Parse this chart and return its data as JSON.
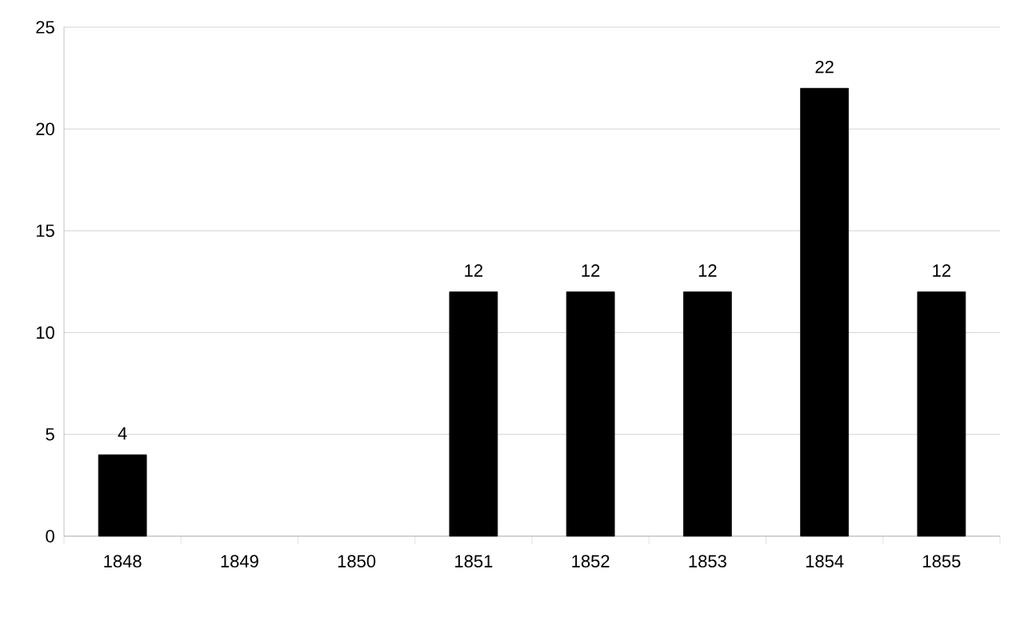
{
  "chart_data": {
    "type": "bar",
    "categories": [
      "1848",
      "1849",
      "1850",
      "1851",
      "1852",
      "1853",
      "1854",
      "1855"
    ],
    "values": [
      4,
      null,
      null,
      12,
      12,
      12,
      22,
      12
    ],
    "color": "#000000",
    "ylim": [
      0,
      25
    ],
    "yticks": [
      0,
      5,
      10,
      15,
      20,
      25
    ],
    "grid": "y",
    "data_labels": true
  }
}
